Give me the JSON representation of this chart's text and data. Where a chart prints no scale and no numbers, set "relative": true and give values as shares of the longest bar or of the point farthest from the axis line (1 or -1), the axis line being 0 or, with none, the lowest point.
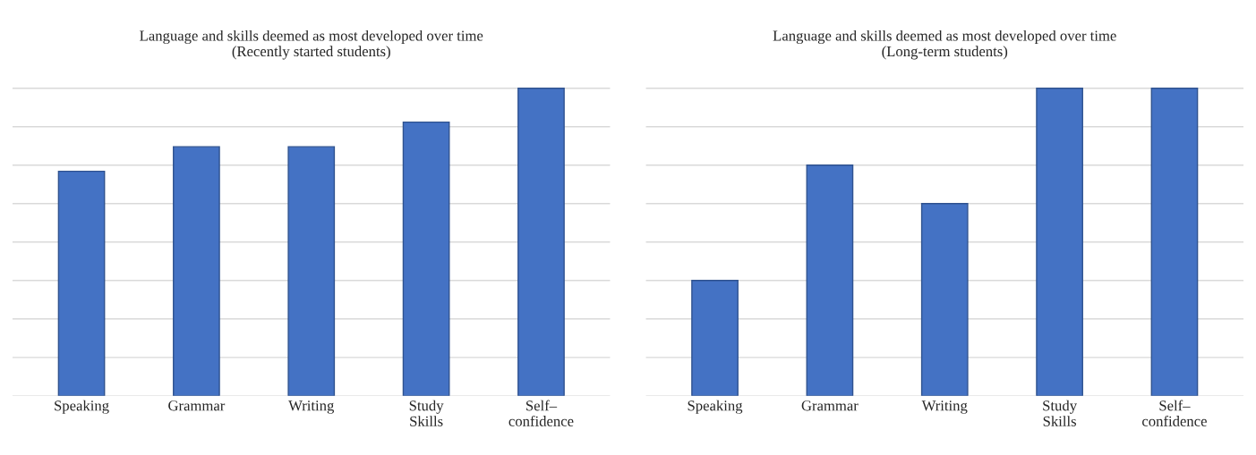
{
  "chart_data": [
    {
      "type": "bar",
      "title": "Language and skills deemed as most developed over time\n(Recently started students)",
      "categories": [
        "Speaking",
        "Grammar",
        "Writing",
        "Study\nSkills",
        "Self–\nconfidence"
      ],
      "values": [
        0.73,
        0.81,
        0.81,
        0.89,
        1
      ],
      "color": "#4472c4",
      "relative": true,
      "grid": "y",
      "tick_labels": "x"
    },
    {
      "type": "bar",
      "title": "Language and skills deemed as most developed over time\n(Long-term students)",
      "categories": [
        "Speaking",
        "Grammar",
        "Writing",
        "Study\nSkills",
        "Self–\nconfidence"
      ],
      "values": [
        0.375,
        0.75,
        0.625,
        1,
        1
      ],
      "color": "#4472c4",
      "relative": true,
      "grid": "y",
      "tick_labels": "x"
    }
  ]
}
